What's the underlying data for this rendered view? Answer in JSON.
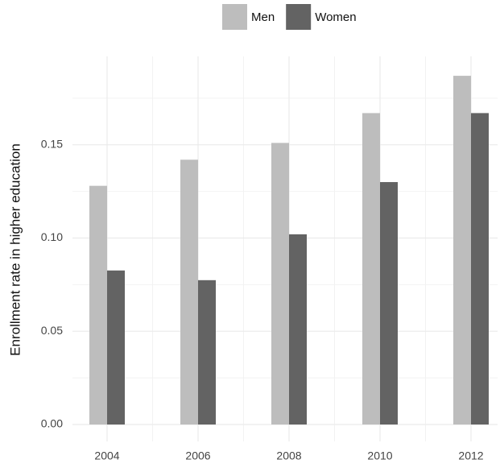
{
  "chart_data": {
    "type": "bar",
    "y_label": "Enrollment rate in higher education",
    "categories": [
      "2004",
      "2006",
      "2008",
      "2010",
      "2012"
    ],
    "series": [
      {
        "name": "Men",
        "color": "#bdbdbd",
        "values": [
          0.128,
          0.142,
          0.151,
          0.167,
          0.187
        ]
      },
      {
        "name": "Women",
        "color": "#636363",
        "values": [
          0.0826,
          0.0774,
          0.102,
          0.13,
          0.167
        ]
      }
    ],
    "ylim": [
      0,
      0.2
    ],
    "yticks": [
      {
        "value": 0,
        "label": "0.00"
      },
      {
        "value": 0.05,
        "label": "0.05"
      },
      {
        "value": 0.1,
        "label": "0.10"
      },
      {
        "value": 0.15,
        "label": "0.15"
      }
    ],
    "grid": true,
    "legend": "top"
  }
}
